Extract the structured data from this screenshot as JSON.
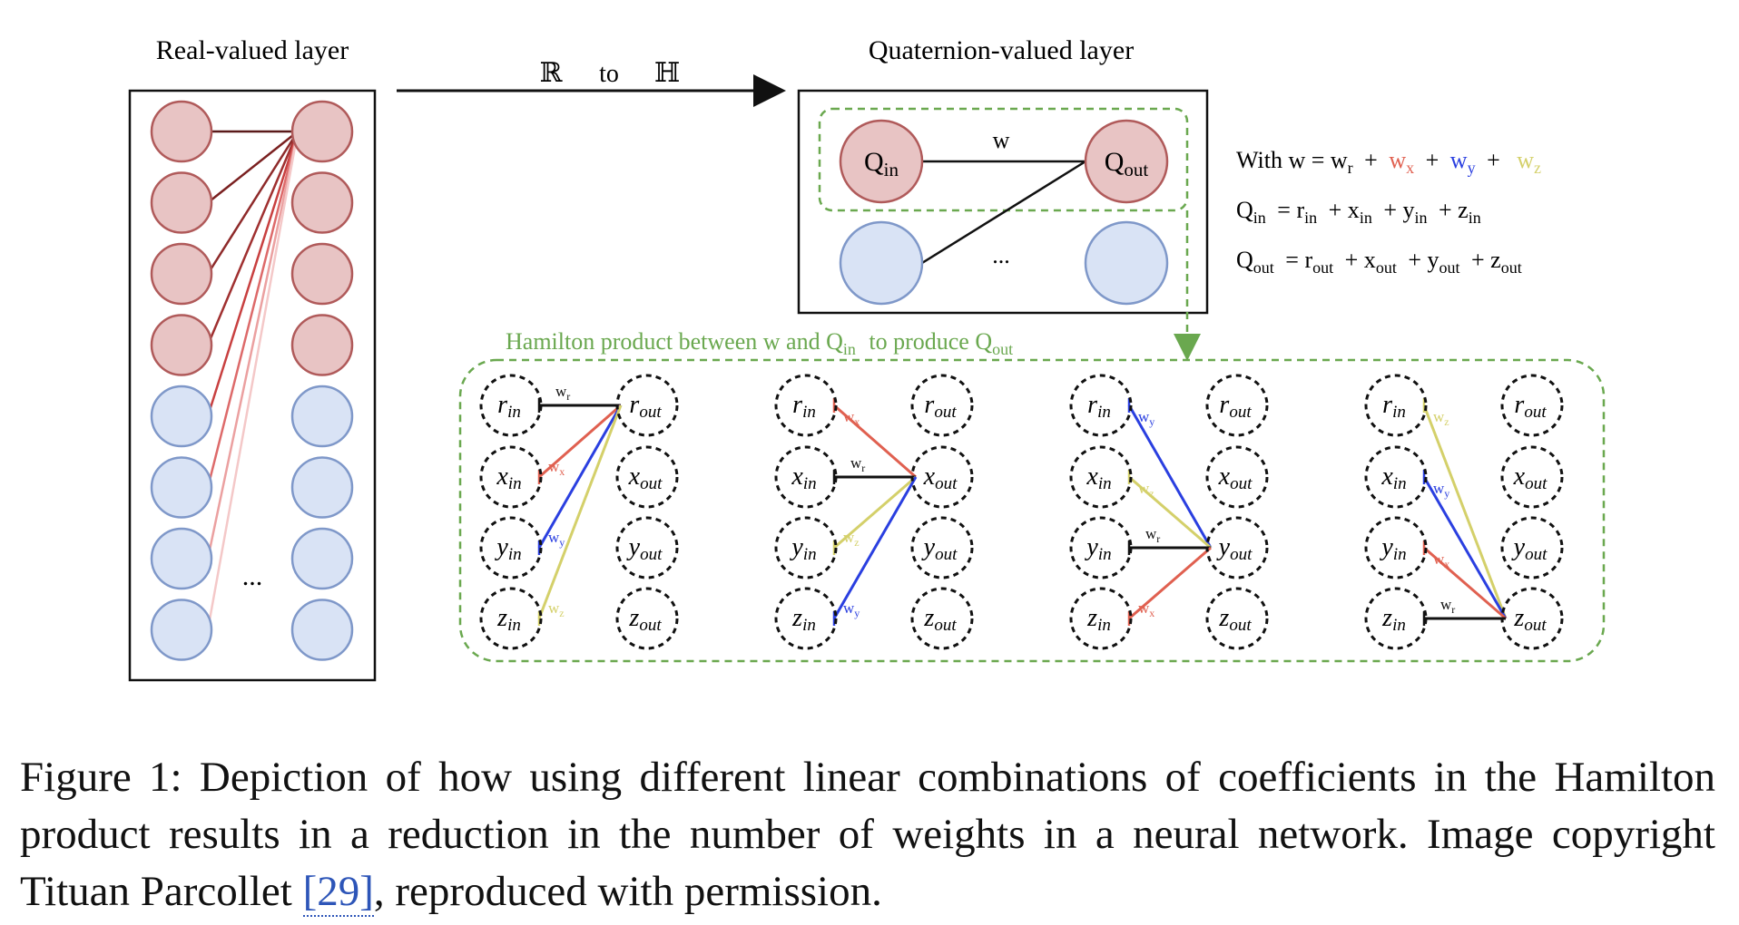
{
  "real_layer": {
    "title": "Real-valued layer",
    "dots": "..."
  },
  "arrow": {
    "from": "ℝ",
    "to_word": "to",
    "to": "ℍ"
  },
  "quat_layer": {
    "title": "Quaternion-valued layer",
    "q_in": "Q",
    "q_in_sub": "in",
    "q_out": "Q",
    "q_out_sub": "out",
    "weight": "w",
    "dots": "..."
  },
  "equations": {
    "eq1": {
      "lhs": "With w = w",
      "wr_sub": "r",
      "plus": "+",
      "wx": "w",
      "wx_sub": "x",
      "wy": "w",
      "wy_sub": "y",
      "wz": "w",
      "wz_sub": "z"
    },
    "eq2": {
      "lhs": "Q",
      "lhs_sub": "in",
      "r": "= r",
      "r_sub": "in",
      "x": "+ x",
      "x_sub": "in",
      "y": "+ y",
      "y_sub": "in",
      "z": "+ z",
      "z_sub": "in"
    },
    "eq3": {
      "lhs": "Q",
      "lhs_sub": "out",
      "r": "= r",
      "r_sub": "out",
      "x": "+ x",
      "x_sub": "out",
      "y": "+ y",
      "y_sub": "out",
      "z": "+ z",
      "z_sub": "out"
    }
  },
  "hamilton": {
    "label_pre": "Hamilton product between w and Q",
    "label_sub1": "in",
    "label_mid": "to produce Q",
    "label_sub2": "out",
    "in_nodes": [
      {
        "b": "r",
        "s": "in"
      },
      {
        "b": "x",
        "s": "in"
      },
      {
        "b": "y",
        "s": "in"
      },
      {
        "b": "z",
        "s": "in"
      }
    ],
    "out_nodes": [
      {
        "b": "r",
        "s": "out"
      },
      {
        "b": "x",
        "s": "out"
      },
      {
        "b": "y",
        "s": "out"
      },
      {
        "b": "z",
        "s": "out"
      }
    ],
    "weight_labels": {
      "wr": {
        "b": "w",
        "s": "r"
      },
      "wx": {
        "b": "w",
        "s": "x"
      },
      "wy": {
        "b": "w",
        "s": "y"
      },
      "wz": {
        "b": "w",
        "s": "z"
      }
    }
  },
  "caption": {
    "text": "Figure 1: Depiction of how using different linear combinations of coefficients in the Hamilton product results in a reduction in the number of weights in a neural network. Image copyright Tituan Parcollet ",
    "ref": "[29]",
    "tail": ", reproduced with permission."
  },
  "colors": {
    "red_fill": "#e8c4c4",
    "red_stroke": "#b05a5a",
    "blue_fill": "#d9e3f5",
    "blue_stroke": "#7f98c9",
    "green_dash": "#6aa84f",
    "red": "#e06050",
    "blue": "#2a3fe0",
    "yellow": "#d4d06a",
    "black": "#111111"
  }
}
